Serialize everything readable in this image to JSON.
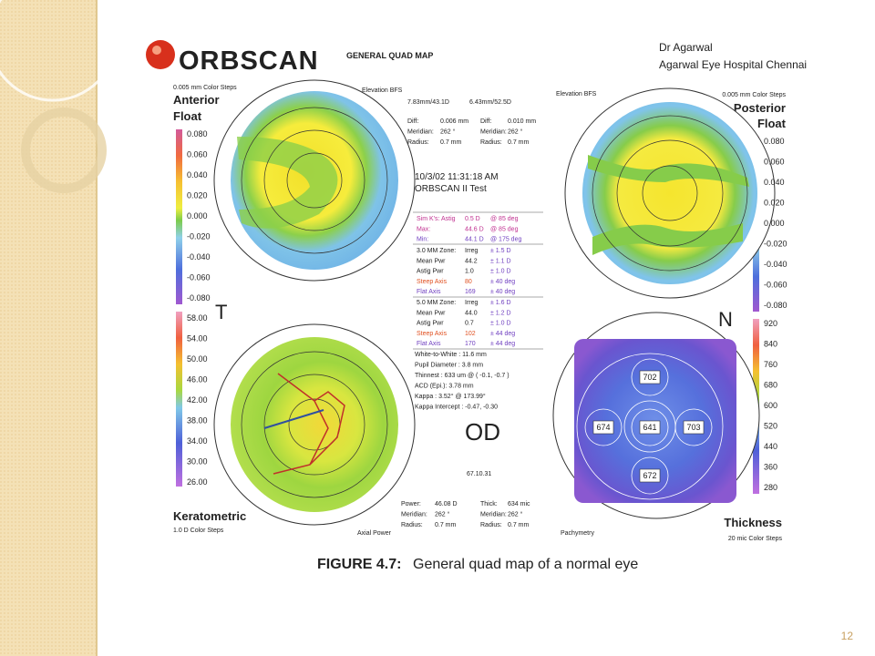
{
  "header": {
    "logo": "ORBSCAN",
    "map_title": "GENERAL QUAD MAP",
    "doctor": "Dr Agarwal",
    "hospital": "Agarwal Eye Hospital Chennai"
  },
  "anterior": {
    "color_steps": "0.005 mm Color Steps",
    "title": "Anterior",
    "subtitle": "Float",
    "map": "Elevation BFS",
    "side": "T",
    "scale": [
      "0.080",
      "0.060",
      "0.040",
      "0.020",
      "0.000",
      "-0.020",
      "-0.040",
      "-0.060",
      "-0.080"
    ]
  },
  "posterior": {
    "color_steps": "0.005 mm Color Steps",
    "title": "Posterior",
    "subtitle": "Float",
    "map": "Elevation BFS",
    "side": "N",
    "scale": [
      "0.080",
      "0.060",
      "0.040",
      "0.020",
      "0.000",
      "-0.020",
      "-0.040",
      "-0.060",
      "-0.080"
    ]
  },
  "keratometric": {
    "title": "Keratometric",
    "color_steps": "1.0 D Color Steps",
    "map": "Axial Power",
    "scale": [
      "58.00",
      "54.00",
      "50.00",
      "46.00",
      "42.00",
      "38.00",
      "34.00",
      "30.00",
      "26.00"
    ]
  },
  "thickness": {
    "title": "Thickness",
    "color_steps": "20 mic Color Steps",
    "map": "Pachymetry",
    "scale": [
      "920",
      "840",
      "760",
      "680",
      "600",
      "520",
      "440",
      "360",
      "280"
    ],
    "points": [
      "702",
      "674",
      "641",
      "703",
      "672"
    ]
  },
  "info": {
    "bfs": [
      "7.83mm/43.1D",
      "6.43mm/52.5D"
    ],
    "diff_left": [
      [
        "Diff:",
        "0.006 mm"
      ],
      [
        "Meridian:",
        "262 °"
      ],
      [
        "Radius:",
        "0.7 mm"
      ]
    ],
    "diff_right": [
      [
        "Diff:",
        "0.010 mm"
      ],
      [
        "Meridian:",
        "262 °"
      ],
      [
        "Radius:",
        "0.7 mm"
      ]
    ],
    "date": "10/3/02 11:31:18 AM",
    "test": "ORBSCAN II Test",
    "sim_k": [
      [
        "Sim K's: Astig",
        "0.5 D",
        "@ 85 deg"
      ],
      [
        "Max:",
        "44.6 D",
        "@ 85 deg"
      ],
      [
        "Min:",
        "44.1 D",
        "@ 175 deg"
      ]
    ],
    "zone3": [
      [
        "3.0 MM Zone:",
        "Irreg",
        "± 1.5 D"
      ],
      [
        "Mean Pwr",
        "44.2",
        "± 1.1 D"
      ],
      [
        "Astig Pwr",
        "1.0",
        "± 1.0 D"
      ],
      [
        "Steep Axis",
        "80",
        "± 40 deg"
      ],
      [
        "Flat Axis",
        "169",
        "± 40 deg"
      ]
    ],
    "zone5": [
      [
        "5.0 MM Zone:",
        "Irreg",
        "± 1.6 D"
      ],
      [
        "Mean Pwr",
        "44.0",
        "± 1.2 D"
      ],
      [
        "Astig Pwr",
        "0.7",
        "± 1.0 D"
      ],
      [
        "Steep Axis",
        "102",
        "± 44 deg"
      ],
      [
        "Flat Axis",
        "170",
        "± 44 deg"
      ]
    ],
    "measures": [
      "White-to-White : 11.6 mm",
      "Pupil Diameter : 3.8 mm",
      "Thinnest : 633 um @ ( -0.1, -0.7 )",
      "ACD (Epi.): 3.78 mm",
      "Kappa : 3.52° @ 173.99°",
      "Kappa Intercept : -0.47, -0.30"
    ],
    "eye": "OD",
    "code": "67.10.31",
    "power_left": [
      [
        "Power:",
        "46.08 D"
      ],
      [
        "Meridian:",
        "262 °"
      ],
      [
        "Radius:",
        "0.7 mm"
      ]
    ],
    "power_right": [
      [
        "Thick:",
        "634 mic"
      ],
      [
        "Meridian:",
        "262 °"
      ],
      [
        "Radius:",
        "0.7 mm"
      ]
    ]
  },
  "caption": {
    "label": "FIGURE 4.7:",
    "text": "General quad map of a normal eye"
  },
  "page_number": "12"
}
